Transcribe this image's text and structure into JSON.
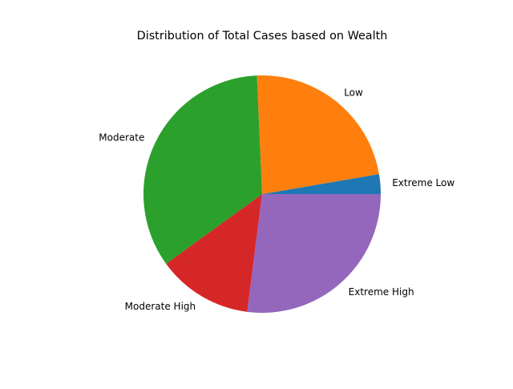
{
  "chart_data": {
    "type": "pie",
    "title": "Distribution of Total Cases based on Wealth",
    "categories": [
      "Extreme Low",
      "Low",
      "Moderate",
      "Moderate High",
      "Extreme High"
    ],
    "values": [
      2.7,
      23.0,
      34.3,
      13.0,
      27.0
    ],
    "colors": [
      "#1f77b4",
      "#ff7f0e",
      "#2ca02c",
      "#d62728",
      "#9467bd"
    ],
    "start_angle_deg": 0,
    "direction": "counterclockwise",
    "legend": "none"
  }
}
